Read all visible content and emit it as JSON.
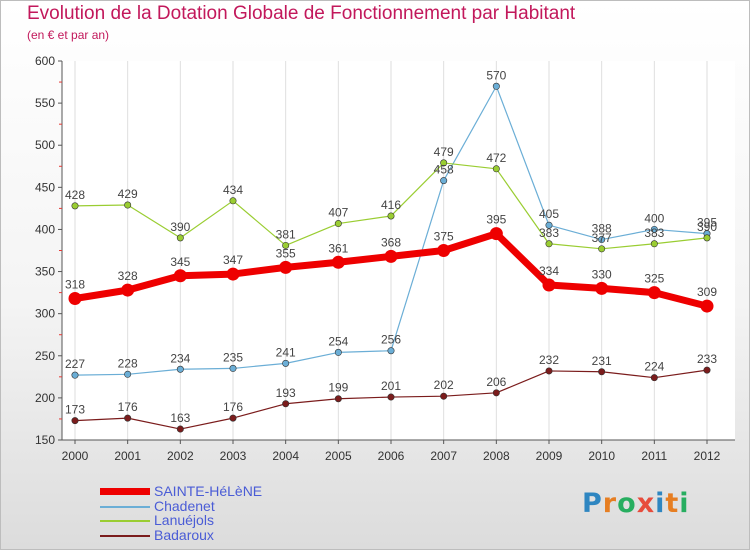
{
  "header": {
    "title": "Evolution de la Dotation Globale de Fonctionnement par Habitant",
    "subtitle": "(en € et par an)"
  },
  "logo": {
    "text": "Proxiti",
    "colors": [
      "#2e86c1",
      "#e67e22",
      "#27ae60",
      "#e74c3c",
      "#2e86c1",
      "#e67e22",
      "#27ae60"
    ]
  },
  "chart_data": {
    "type": "line",
    "title": "Evolution de la Dotation Globale de Fonctionnement par Habitant",
    "subtitle": "(en € et par an)",
    "xlabel": "",
    "ylabel": "",
    "x": [
      "2000",
      "2001",
      "2002",
      "2003",
      "2004",
      "2005",
      "2006",
      "2007",
      "2008",
      "2009",
      "2010",
      "2011",
      "2012"
    ],
    "ylim": [
      150,
      600
    ],
    "yticks": [
      150,
      200,
      250,
      300,
      350,
      400,
      450,
      500,
      550,
      600
    ],
    "grid": true,
    "legend_position": "bottom-left",
    "series": [
      {
        "name": "SAINTE-HéLèNE",
        "color": "#ee0000",
        "width": 7,
        "values": [
          318,
          328,
          345,
          347,
          355,
          361,
          368,
          375,
          395,
          334,
          330,
          325,
          309
        ]
      },
      {
        "name": "Chadenet",
        "color": "#6baed6",
        "width": 1.2,
        "values": [
          227,
          228,
          234,
          235,
          241,
          254,
          256,
          458,
          570,
          405,
          388,
          400,
          395
        ]
      },
      {
        "name": "Lanuéjols",
        "color": "#9acd32",
        "width": 1.2,
        "values": [
          428,
          429,
          390,
          434,
          381,
          407,
          416,
          479,
          472,
          383,
          377,
          383,
          390
        ]
      },
      {
        "name": "Badaroux",
        "color": "#7b1c1c",
        "width": 1.2,
        "values": [
          173,
          176,
          163,
          176,
          193,
          199,
          201,
          202,
          206,
          232,
          231,
          224,
          233
        ]
      }
    ]
  }
}
